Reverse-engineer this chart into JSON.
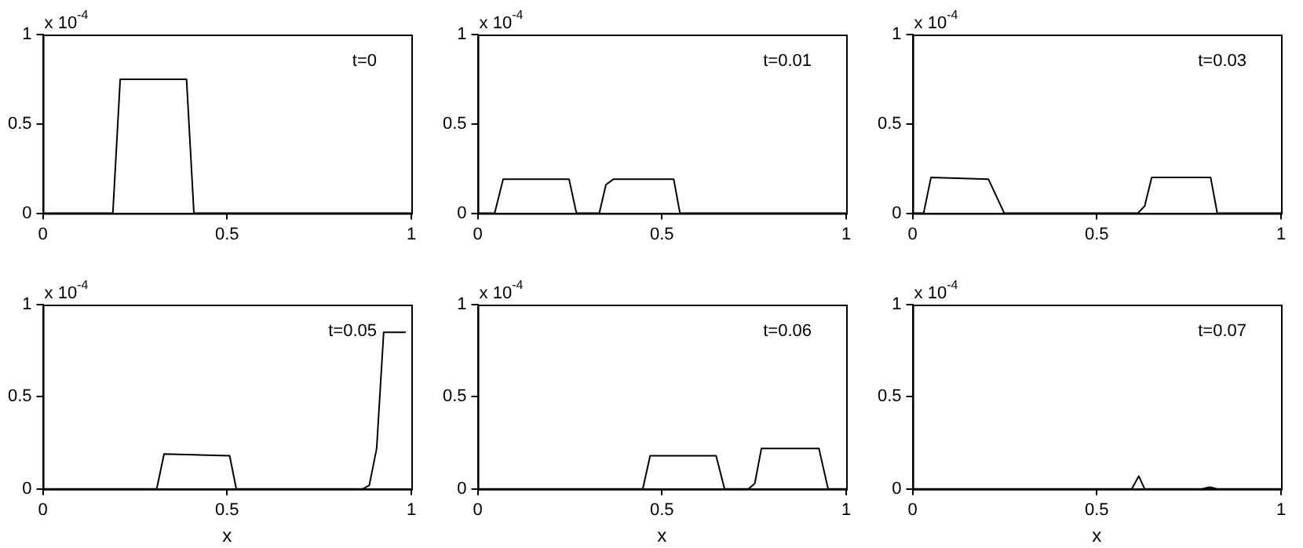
{
  "chart_data": [
    {
      "type": "line",
      "color": "#000000",
      "marker": "none",
      "xlim": [
        0,
        1
      ],
      "ylim": [
        0,
        1
      ],
      "xticks": [
        0,
        0.5,
        1
      ],
      "yticks": [
        0,
        0.5,
        1
      ],
      "annotations": [
        "x 10$^{-4}$",
        "t=0"
      ],
      "x": [
        0,
        0.19,
        0.21,
        0.39,
        0.41,
        1
      ],
      "values": [
        0,
        0,
        0.75,
        0.75,
        0,
        0
      ]
    },
    {
      "type": "line",
      "color": "#000000",
      "marker": "none",
      "xlim": [
        0,
        1
      ],
      "ylim": [
        0,
        1
      ],
      "xticks": [
        0,
        0.5,
        1
      ],
      "yticks": [
        0,
        0.5,
        1
      ],
      "annotations": [
        "x 10$^{-4}$",
        "t=0.01"
      ],
      "x": [
        0,
        0.046,
        0.069,
        0.248,
        0.268,
        0.33,
        0.348,
        0.368,
        0.532,
        0.549,
        1
      ],
      "values": [
        0,
        0,
        0.19,
        0.19,
        0,
        0,
        0.16,
        0.19,
        0.19,
        0,
        0
      ]
    },
    {
      "type": "line",
      "color": "#000000",
      "marker": "none",
      "xlim": [
        0,
        1
      ],
      "ylim": [
        0,
        1
      ],
      "xticks": [
        0,
        0.5,
        1
      ],
      "yticks": [
        0,
        0.5,
        1
      ],
      "annotations": [
        "x 10$^{-4}$",
        "t=0.03"
      ],
      "x": [
        0,
        0.03,
        0.05,
        0.206,
        0.249,
        0.611,
        0.63,
        0.649,
        0.809,
        0.827,
        1
      ],
      "values": [
        0,
        0,
        0.2,
        0.19,
        0,
        0,
        0.04,
        0.2,
        0.2,
        0,
        0
      ]
    },
    {
      "type": "line",
      "color": "#000000",
      "marker": "none",
      "xlabel": "x",
      "xlim": [
        0,
        1
      ],
      "ylim": [
        0,
        1
      ],
      "xticks": [
        0,
        0.5,
        1
      ],
      "yticks": [
        0,
        0.5,
        1
      ],
      "annotations": [
        "x 10$^{-4}$",
        "t=0.05"
      ],
      "x": [
        0,
        0.309,
        0.329,
        0.507,
        0.525,
        0.868,
        0.886,
        0.906,
        0.925,
        0.985
      ],
      "values": [
        0,
        0,
        0.19,
        0.18,
        0,
        0,
        0.02,
        0.22,
        0.85,
        0.85
      ]
    },
    {
      "type": "line",
      "color": "#000000",
      "marker": "none",
      "xlabel": "x",
      "xlim": [
        0,
        1
      ],
      "ylim": [
        0,
        1
      ],
      "xticks": [
        0,
        0.5,
        1
      ],
      "yticks": [
        0,
        0.5,
        1
      ],
      "annotations": [
        "x 10$^{-4}$",
        "t=0.06"
      ],
      "x": [
        0,
        0.448,
        0.468,
        0.647,
        0.67,
        0.735,
        0.752,
        0.77,
        0.926,
        0.951,
        1
      ],
      "values": [
        0,
        0,
        0.18,
        0.18,
        0,
        0,
        0.03,
        0.22,
        0.22,
        0,
        0
      ]
    },
    {
      "type": "line",
      "color": "#000000",
      "marker": "none",
      "xlabel": "x",
      "xlim": [
        0,
        1
      ],
      "ylim": [
        0,
        1
      ],
      "xticks": [
        0,
        0.5,
        1
      ],
      "yticks": [
        0,
        0.5,
        1
      ],
      "annotations": [
        "x 10$^{-4}$",
        "t=0.07"
      ],
      "x": [
        0,
        0.595,
        0.614,
        0.63,
        0.786,
        0.806,
        0.827,
        1
      ],
      "values": [
        0,
        0,
        0.07,
        0,
        0,
        0.01,
        0,
        0
      ]
    }
  ]
}
